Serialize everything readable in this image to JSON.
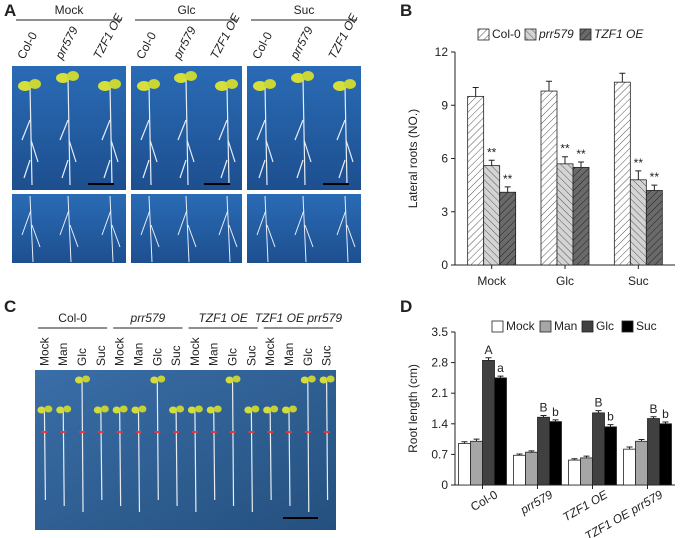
{
  "panel_labels": [
    "A",
    "B",
    "C",
    "D"
  ],
  "panel_a": {
    "groups": [
      "Mock",
      "Glc",
      "Suc"
    ],
    "genotypes": [
      "Col-0",
      "prr579",
      "TZF1 OE"
    ]
  },
  "panel_c": {
    "groups": [
      "Col-0",
      "prr579",
      "TZF1 OE",
      "TZF1 OE prr579"
    ],
    "treatments": [
      "Mock",
      "Man",
      "Glc",
      "Suc"
    ]
  },
  "chart_data": [
    {
      "type": "bar",
      "y_label": "Lateral roots (NO.)",
      "categories": [
        "Mock",
        "Glc",
        "Suc"
      ],
      "series": [
        {
          "name": "Col-0",
          "color": "#ffffff",
          "values": [
            9.5,
            9.8,
            10.3
          ],
          "errors": [
            0.5,
            0.55,
            0.5
          ]
        },
        {
          "name": "prr579",
          "color": "#d4d4d4",
          "values": [
            5.6,
            5.7,
            4.8
          ],
          "errors": [
            0.3,
            0.4,
            0.5
          ],
          "annotations": [
            "**",
            "**",
            "**"
          ]
        },
        {
          "name": "TZF1 OE",
          "color": "#6a6a6a",
          "values": [
            4.1,
            5.5,
            4.2
          ],
          "errors": [
            0.3,
            0.3,
            0.3
          ],
          "annotations": [
            "**",
            "**",
            "**"
          ]
        }
      ],
      "ylim": [
        0,
        12
      ],
      "yticks": [
        0,
        3,
        6,
        9,
        12
      ],
      "legend": "top",
      "hatch": true
    },
    {
      "type": "bar",
      "y_label": "Root length (cm)",
      "categories": [
        "Col-0",
        "prr579",
        "TZF1 OE",
        "TZF1 OE prr579"
      ],
      "series": [
        {
          "name": "Mock",
          "color": "#ffffff",
          "values": [
            0.95,
            0.68,
            0.57,
            0.82
          ],
          "errors": [
            0.04,
            0.03,
            0.03,
            0.05
          ]
        },
        {
          "name": "Man",
          "color": "#a6a6a6",
          "values": [
            1.0,
            0.75,
            0.62,
            1.0
          ],
          "errors": [
            0.05,
            0.03,
            0.04,
            0.04
          ]
        },
        {
          "name": "Glc",
          "color": "#404040",
          "values": [
            2.85,
            1.55,
            1.65,
            1.52
          ],
          "errors": [
            0.06,
            0.04,
            0.05,
            0.04
          ],
          "annotations": [
            "A",
            "B",
            "B",
            "B"
          ]
        },
        {
          "name": "Suc",
          "color": "#000000",
          "values": [
            2.45,
            1.45,
            1.33,
            1.4
          ],
          "errors": [
            0.04,
            0.04,
            0.05,
            0.04
          ],
          "annotations": [
            "a",
            "b",
            "b",
            "b"
          ]
        }
      ],
      "ylim": [
        0,
        3.5
      ],
      "yticks": [
        0,
        0.7,
        1.4,
        2.1,
        2.8,
        3.5
      ],
      "legend": "top",
      "hatch": false
    }
  ]
}
